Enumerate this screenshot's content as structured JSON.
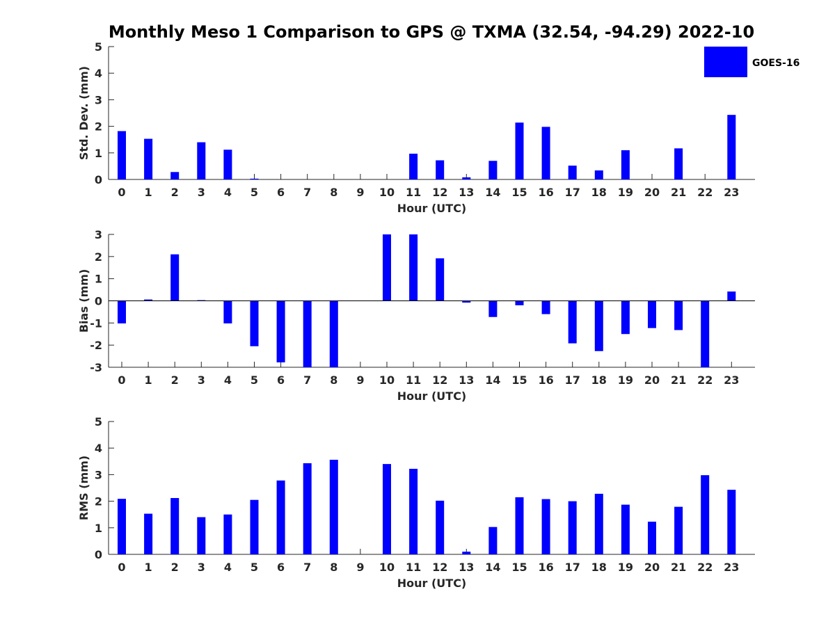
{
  "title": "Monthly Meso 1 Comparison to GPS @ TXMA (32.54, -94.29) 2022-10",
  "legend": {
    "label": "GOES-16",
    "color": "#0000ff",
    "placement": "top-right"
  },
  "colors": {
    "bar": "#0000ff",
    "axis": "#262626",
    "zero_line": "#000000"
  },
  "chart_data": [
    {
      "type": "bar",
      "name": "std-dev",
      "xlabel": "Hour (UTC)",
      "ylabel": "Std. Dev. (mm)",
      "ylim": [
        0,
        5
      ],
      "yticks": [
        0,
        1,
        2,
        3,
        4,
        5
      ],
      "categories": [
        "0",
        "1",
        "2",
        "3",
        "4",
        "5",
        "6",
        "7",
        "8",
        "9",
        "10",
        "11",
        "12",
        "13",
        "14",
        "15",
        "16",
        "17",
        "18",
        "19",
        "20",
        "21",
        "22",
        "23"
      ],
      "series": [
        {
          "name": "GOES-16",
          "values": [
            1.82,
            1.53,
            0.28,
            1.4,
            1.12,
            0.03,
            null,
            null,
            null,
            null,
            null,
            0.97,
            0.72,
            0.08,
            0.7,
            2.14,
            1.98,
            0.52,
            0.34,
            1.1,
            null,
            1.17,
            null,
            2.43
          ]
        }
      ]
    },
    {
      "type": "bar",
      "name": "bias",
      "xlabel": "Hour (UTC)",
      "ylabel": "Bias (mm)",
      "ylim": [
        -3,
        3
      ],
      "yticks": [
        -3,
        -2,
        -1,
        0,
        1,
        2,
        3
      ],
      "categories": [
        "0",
        "1",
        "2",
        "3",
        "4",
        "5",
        "6",
        "7",
        "8",
        "9",
        "10",
        "11",
        "12",
        "13",
        "14",
        "15",
        "16",
        "17",
        "18",
        "19",
        "20",
        "21",
        "22",
        "23"
      ],
      "series": [
        {
          "name": "GOES-16",
          "values": [
            -1.02,
            0.06,
            2.1,
            0.03,
            -1.02,
            -2.05,
            -2.78,
            -3.0,
            -3.0,
            null,
            3.0,
            3.0,
            1.92,
            -0.08,
            -0.73,
            -0.2,
            -0.6,
            -1.92,
            -2.27,
            -1.5,
            -1.23,
            -1.32,
            -3.0,
            0.42
          ]
        }
      ]
    },
    {
      "type": "bar",
      "name": "rms",
      "xlabel": "Hour (UTC)",
      "ylabel": "RMS (mm)",
      "ylim": [
        0,
        5
      ],
      "yticks": [
        0,
        1,
        2,
        3,
        4,
        5
      ],
      "categories": [
        "0",
        "1",
        "2",
        "3",
        "4",
        "5",
        "6",
        "7",
        "8",
        "9",
        "10",
        "11",
        "12",
        "13",
        "14",
        "15",
        "16",
        "17",
        "18",
        "19",
        "20",
        "21",
        "22",
        "23"
      ],
      "series": [
        {
          "name": "GOES-16",
          "values": [
            2.09,
            1.53,
            2.12,
            1.4,
            1.5,
            2.05,
            2.78,
            3.43,
            3.56,
            null,
            3.4,
            3.22,
            2.02,
            0.1,
            1.03,
            2.15,
            2.08,
            2.0,
            2.28,
            1.87,
            1.23,
            1.79,
            2.98,
            2.43
          ]
        }
      ]
    }
  ]
}
